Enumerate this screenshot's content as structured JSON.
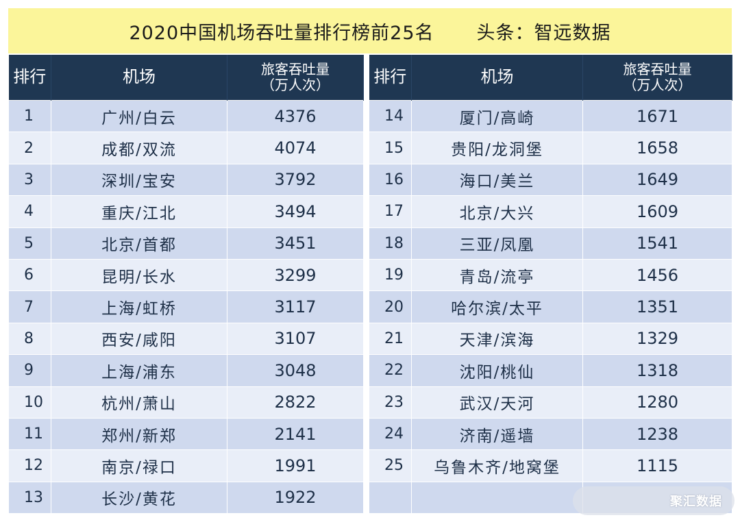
{
  "title": {
    "main": "2020中国机场吞吐量排行榜前25名",
    "source": "头条：智远数据"
  },
  "headers": {
    "rank": "排行",
    "airport": "机场",
    "volume_line1": "旅客吞吐量",
    "volume_line2": "（万人次）"
  },
  "left_rows": [
    {
      "rank": "1",
      "airport": "广州/白云",
      "volume": "4376"
    },
    {
      "rank": "2",
      "airport": "成都/双流",
      "volume": "4074"
    },
    {
      "rank": "3",
      "airport": "深圳/宝安",
      "volume": "3792"
    },
    {
      "rank": "4",
      "airport": "重庆/江北",
      "volume": "3494"
    },
    {
      "rank": "5",
      "airport": "北京/首都",
      "volume": "3451"
    },
    {
      "rank": "6",
      "airport": "昆明/长水",
      "volume": "3299"
    },
    {
      "rank": "7",
      "airport": "上海/虹桥",
      "volume": "3117"
    },
    {
      "rank": "8",
      "airport": "西安/咸阳",
      "volume": "3107"
    },
    {
      "rank": "9",
      "airport": "上海/浦东",
      "volume": "3048"
    },
    {
      "rank": "10",
      "airport": "杭州/萧山",
      "volume": "2822"
    },
    {
      "rank": "11",
      "airport": "郑州/新郑",
      "volume": "2141"
    },
    {
      "rank": "12",
      "airport": "南京/禄口",
      "volume": "1991"
    },
    {
      "rank": "13",
      "airport": "长沙/黄花",
      "volume": "1922"
    }
  ],
  "right_rows": [
    {
      "rank": "14",
      "airport": "厦门/高崎",
      "volume": "1671"
    },
    {
      "rank": "15",
      "airport": "贵阳/龙洞堡",
      "volume": "1658"
    },
    {
      "rank": "16",
      "airport": "海口/美兰",
      "volume": "1649"
    },
    {
      "rank": "17",
      "airport": "北京/大兴",
      "volume": "1609"
    },
    {
      "rank": "18",
      "airport": "三亚/凤凰",
      "volume": "1541"
    },
    {
      "rank": "19",
      "airport": "青岛/流亭",
      "volume": "1456"
    },
    {
      "rank": "20",
      "airport": "哈尔滨/太平",
      "volume": "1351"
    },
    {
      "rank": "21",
      "airport": "天津/滨海",
      "volume": "1329"
    },
    {
      "rank": "22",
      "airport": "沈阳/桃仙",
      "volume": "1318"
    },
    {
      "rank": "23",
      "airport": "武汉/天河",
      "volume": "1280"
    },
    {
      "rank": "24",
      "airport": "济南/遥墙",
      "volume": "1238"
    },
    {
      "rank": "25",
      "airport": "乌鲁木齐/地窝堡",
      "volume": "1115"
    },
    {
      "rank": "",
      "airport": "",
      "volume": ""
    }
  ],
  "watermark": "聚汇数据",
  "colors": {
    "title_bg": "#fbf59a",
    "header_bg": "#1f3752",
    "row_odd": "#cfd9ee",
    "row_even": "#e9eef8",
    "text": "#1d2f47"
  }
}
